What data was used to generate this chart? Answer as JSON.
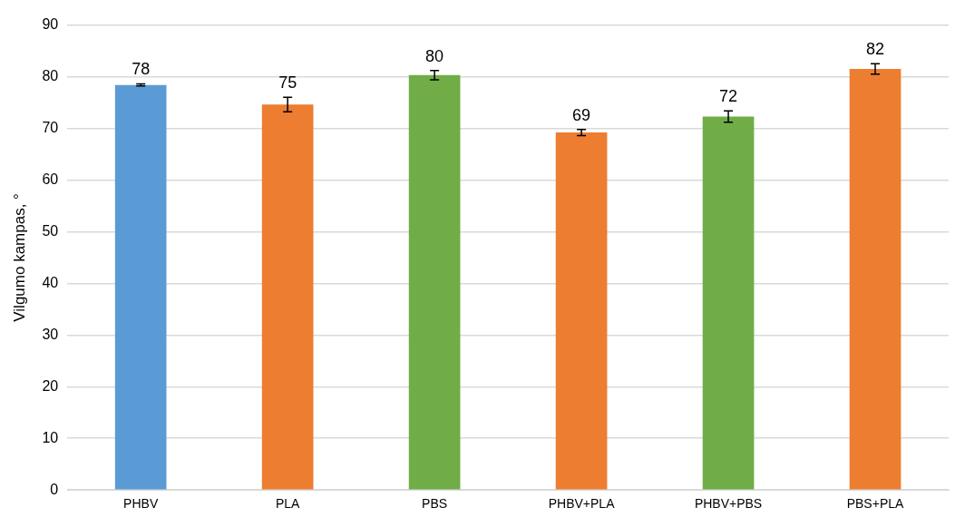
{
  "chart_data": {
    "type": "bar",
    "ylabel": "Vilgumo kampas, °",
    "categories": [
      "PHBV",
      "PLA",
      "PBS",
      "PHBV+PLA",
      "PHBV+PBS",
      "PBS+PLA"
    ],
    "values": [
      78.4,
      74.6,
      80.3,
      69.2,
      72.3,
      81.5
    ],
    "errors": [
      0.2,
      1.4,
      0.9,
      0.6,
      1.1,
      1.0
    ],
    "value_labels": [
      "78",
      "75",
      "80",
      "69",
      "72",
      "82"
    ],
    "colors": [
      "#5b9bd5",
      "#ed7d31",
      "#70ad47",
      "#ed7d31",
      "#70ad47",
      "#ed7d31"
    ],
    "ylim": [
      0,
      90
    ],
    "yticks": [
      0,
      10,
      20,
      30,
      40,
      50,
      60,
      70,
      80,
      90
    ],
    "grid": "y",
    "legend": false
  }
}
